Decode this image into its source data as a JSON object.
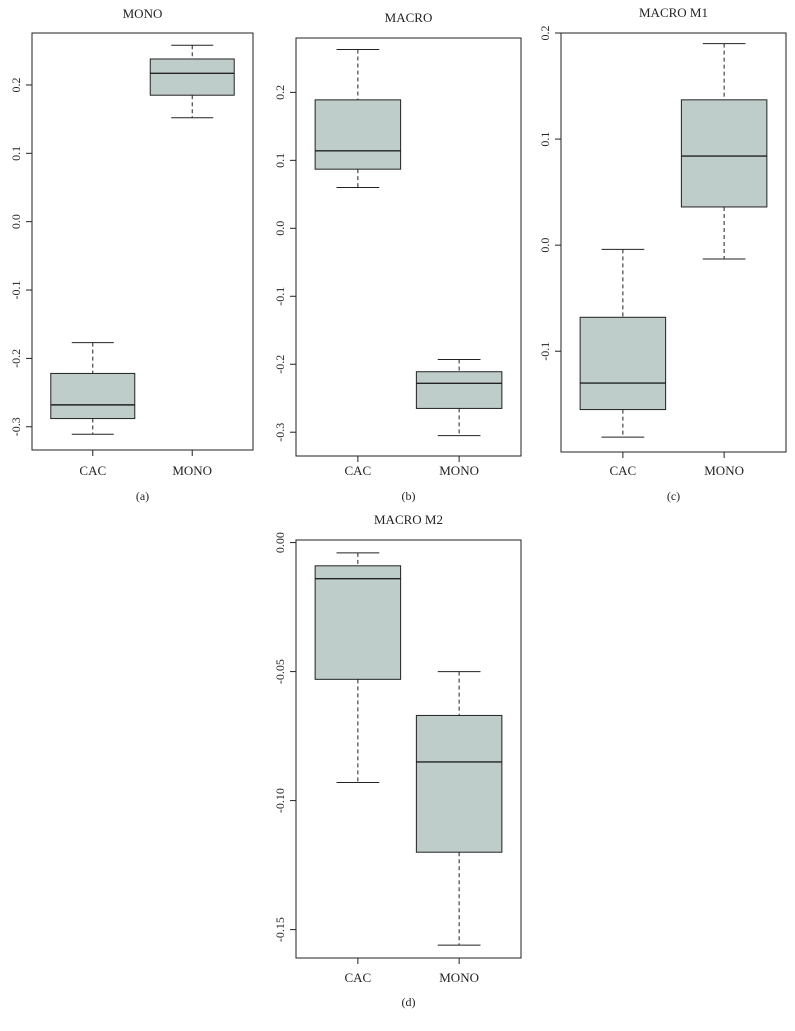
{
  "chart_data": [
    {
      "type": "box",
      "title": "MONO",
      "caption": "(a)",
      "categories": [
        "CAC",
        "MONO"
      ],
      "ylim": [
        -0.334,
        0.276
      ],
      "yticks": [
        "0.2",
        "0.1",
        "0.0",
        "-0.1",
        "-0.2",
        "-0.3"
      ],
      "ytick_values": [
        0.2,
        0.1,
        0.0,
        -0.1,
        -0.2,
        -0.3
      ],
      "boxes": [
        {
          "name": "CAC",
          "min": -0.311,
          "q1": -0.288,
          "median": -0.268,
          "q3": -0.222,
          "max": -0.177
        },
        {
          "name": "MONO",
          "min": 0.152,
          "q1": 0.185,
          "median": 0.217,
          "q3": 0.238,
          "max": 0.258
        }
      ]
    },
    {
      "type": "box",
      "title": "MACRO",
      "caption": "(b)",
      "categories": [
        "CAC",
        "MONO"
      ],
      "ylim": [
        -0.335,
        0.28
      ],
      "yticks": [
        "0.2",
        "0.1",
        "0.0",
        "-0.1",
        "-0.2",
        "-0.3"
      ],
      "ytick_values": [
        0.2,
        0.1,
        0.0,
        -0.1,
        -0.2,
        -0.3
      ],
      "boxes": [
        {
          "name": "CAC",
          "min": 0.06,
          "q1": 0.087,
          "median": 0.114,
          "q3": 0.189,
          "max": 0.263
        },
        {
          "name": "MONO",
          "min": -0.305,
          "q1": -0.265,
          "median": -0.228,
          "q3": -0.211,
          "max": -0.193
        }
      ]
    },
    {
      "type": "box",
      "title": "MACRO M1",
      "caption": "(c)",
      "categories": [
        "CAC",
        "MONO"
      ],
      "ylim": [
        -0.195,
        0.2
      ],
      "yticks": [
        "0.2",
        "0.1",
        "0.0",
        "-0.1"
      ],
      "ytick_values": [
        0.2,
        0.1,
        0.0,
        -0.1
      ],
      "boxes": [
        {
          "name": "CAC",
          "min": -0.181,
          "q1": -0.155,
          "median": -0.13,
          "q3": -0.068,
          "max": -0.004
        },
        {
          "name": "MONO",
          "min": -0.013,
          "q1": 0.036,
          "median": 0.084,
          "q3": 0.137,
          "max": 0.19
        }
      ]
    },
    {
      "type": "box",
      "title": "MACRO M2",
      "caption": "(d)",
      "categories": [
        "CAC",
        "MONO"
      ],
      "ylim": [
        -0.161,
        0.001
      ],
      "yticks": [
        "0.00",
        "-0.05",
        "-0.10",
        "-0.15"
      ],
      "ytick_values": [
        0.0,
        -0.05,
        -0.1,
        -0.15
      ],
      "boxes": [
        {
          "name": "CAC",
          "min": -0.093,
          "q1": -0.053,
          "median": -0.014,
          "q3": -0.009,
          "max": -0.004
        },
        {
          "name": "MONO",
          "min": -0.156,
          "q1": -0.12,
          "median": -0.085,
          "q3": -0.067,
          "max": -0.05
        }
      ]
    }
  ]
}
